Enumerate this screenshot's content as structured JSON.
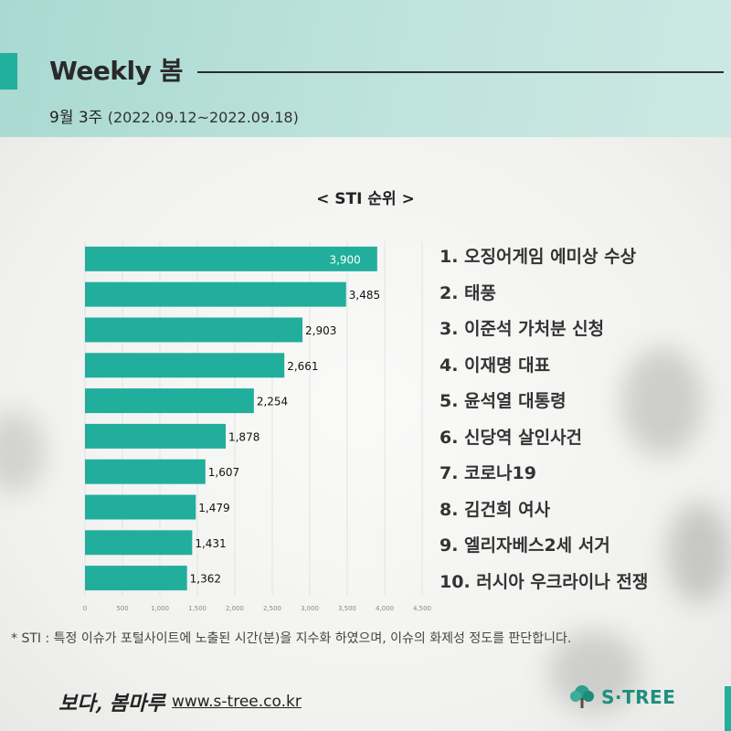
{
  "header": {
    "title": "Weekly 봄",
    "week_label": "9월 3주",
    "week_dates": "(2022.09.12~2022.09.18)"
  },
  "chart_data": {
    "type": "bar",
    "orientation": "horizontal",
    "title": "< STI 순위 >",
    "categories": [
      "1",
      "2",
      "3",
      "4",
      "5",
      "6",
      "7",
      "8",
      "9",
      "10"
    ],
    "values": [
      3900,
      3485,
      2903,
      2661,
      2254,
      1878,
      1607,
      1479,
      1431,
      1362
    ],
    "value_labels": [
      "3,900",
      "3,485",
      "2,903",
      "2,661",
      "2,254",
      "1,878",
      "1,607",
      "1,479",
      "1,431",
      "1,362"
    ],
    "x_ticks": [
      0,
      500,
      1000,
      1500,
      2000,
      2500,
      3000,
      3500,
      4000,
      4500
    ],
    "x_tick_labels": [
      "0",
      "500",
      "1,000",
      "1,500",
      "2,000",
      "2,500",
      "3,000",
      "3,500",
      "4,000",
      "4,500"
    ],
    "xlim": [
      0,
      4500
    ],
    "grid": true,
    "bar_color": "#22ae9c"
  },
  "ranking": [
    "1. 오징어게임 에미상 수상",
    "2. 태풍",
    "3. 이준석 가처분 신청",
    "4. 이재명 대표",
    "5. 윤석열 대통령",
    "6. 신당역 살인사건",
    "7. 코로나19",
    "8. 김건희 여사",
    "9. 엘리자베스2세 서거",
    "10. 러시아 우크라이나 전쟁"
  ],
  "footnote": "* STI : 특정 이슈가 포털사이트에 노출된 시간(분)을 지수화 하였으며, 이슈의 화제성 정도를 판단합니다.",
  "footer": {
    "logo_text": "보다, 봄마루",
    "url": "www.s-tree.co.kr",
    "brand": "S·TREE"
  },
  "colors": {
    "accent": "#20b09c",
    "brand": "#1d8f7d"
  }
}
